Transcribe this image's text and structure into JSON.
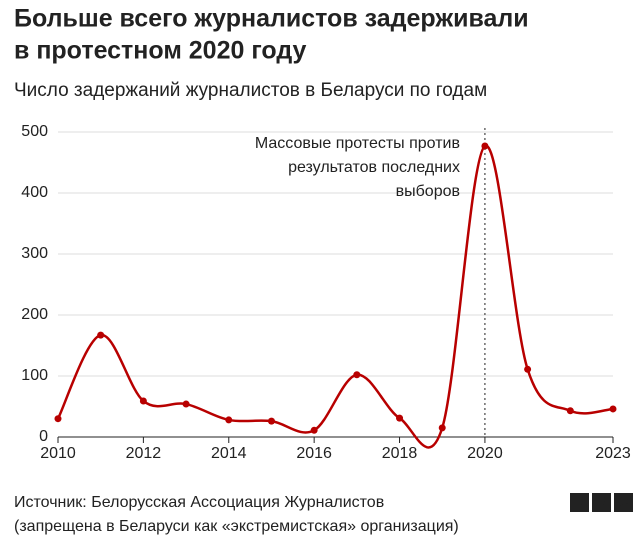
{
  "chart_data": {
    "type": "line",
    "title": [
      "Больше всего журналистов задерживали",
      "в протестном 2020 году"
    ],
    "subtitle": "Число задержаний журналистов в Беларуси по годам",
    "x": [
      2010,
      2011,
      2012,
      2013,
      2014,
      2015,
      2016,
      2017,
      2018,
      2019,
      2020,
      2021,
      2022,
      2023
    ],
    "series": [
      {
        "color": "#b80000",
        "values": [
          30,
          167,
          59,
          54,
          28,
          26,
          11,
          102,
          31,
          15,
          477,
          111,
          43,
          46
        ]
      }
    ],
    "xlim": [
      2010,
      2023
    ],
    "xticks": [
      2010,
      2012,
      2014,
      2016,
      2018,
      2020,
      2023
    ],
    "ylim": [
      0,
      500
    ],
    "yticks": [
      0,
      100,
      200,
      300,
      400,
      500
    ],
    "grid": true,
    "annotation": {
      "x": 2020,
      "text": [
        "Массовые протесты против",
        "результатов последних",
        "выборов"
      ]
    },
    "source": [
      "Источник: Белорусская Ассоциация Журналистов",
      "(запрещена в Беларуси как «экстремистская» организация)"
    ],
    "logo": [
      "B",
      "B",
      "C"
    ]
  }
}
